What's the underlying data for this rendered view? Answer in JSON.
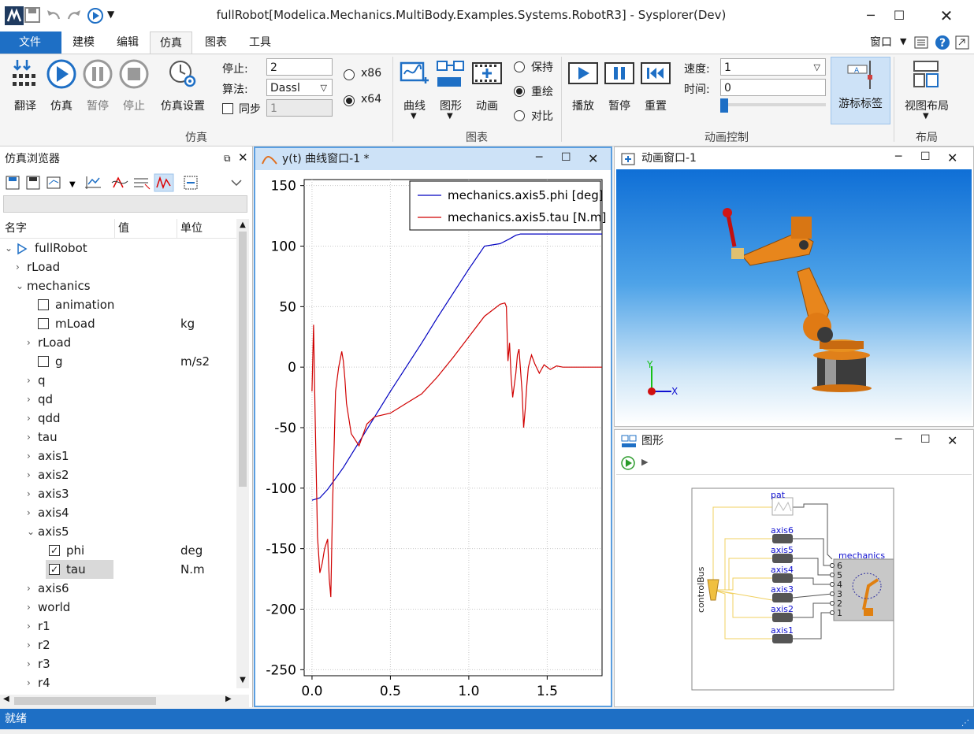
{
  "window": {
    "title": "fullRobot[Modelica.Mechanics.MultiBody.Examples.Systems.RobotR3] - Sysplorer(Dev)"
  },
  "menu": {
    "file": "文件",
    "items": [
      "建模",
      "编辑",
      "仿真",
      "图表",
      "工具"
    ],
    "window_menu": "窗口"
  },
  "ribbon": {
    "sim_group": {
      "label": "仿真",
      "translate": "翻译",
      "simulate": "仿真",
      "pause": "暂停",
      "stop": "停止",
      "settings": "仿真设置"
    },
    "stop_label": "停止:",
    "stop_value": "2",
    "algo_label": "算法:",
    "algo_value": "Dassl",
    "sync_label": "同步",
    "sync_value": "1",
    "arch": {
      "x86": "x86",
      "x64": "x64"
    },
    "chart_group": {
      "label": "图表",
      "curve": "曲线",
      "graph": "图形",
      "animation": "动画"
    },
    "plot_mode": {
      "keep": "保持",
      "redraw": "重绘",
      "compare": "对比"
    },
    "anim_group": {
      "label": "动画控制",
      "play": "播放",
      "pause": "暂停",
      "reset": "重置",
      "speed_label": "速度:",
      "speed_value": "1",
      "time_label": "时间:",
      "time_value": "0",
      "cursor_label": "游标标签"
    },
    "layout_group": {
      "label": "布局",
      "view_layout": "视图布局"
    }
  },
  "browser": {
    "title": "仿真浏览器",
    "columns": {
      "name": "名字",
      "value": "值",
      "unit": "单位"
    },
    "rows": [
      {
        "label": "fullRobot",
        "unit": ""
      },
      {
        "label": "rLoad",
        "unit": ""
      },
      {
        "label": "mechanics",
        "unit": ""
      },
      {
        "label": "animation",
        "unit": ""
      },
      {
        "label": "mLoad",
        "unit": "kg"
      },
      {
        "label": "rLoad",
        "unit": ""
      },
      {
        "label": "g",
        "unit": "m/s2"
      },
      {
        "label": "q",
        "unit": ""
      },
      {
        "label": "qd",
        "unit": ""
      },
      {
        "label": "qdd",
        "unit": ""
      },
      {
        "label": "tau",
        "unit": ""
      },
      {
        "label": "axis1",
        "unit": ""
      },
      {
        "label": "axis2",
        "unit": ""
      },
      {
        "label": "axis3",
        "unit": ""
      },
      {
        "label": "axis4",
        "unit": ""
      },
      {
        "label": "axis5",
        "unit": ""
      },
      {
        "label": "phi",
        "unit": "deg"
      },
      {
        "label": "tau",
        "unit": "N.m"
      },
      {
        "label": "axis6",
        "unit": ""
      },
      {
        "label": "world",
        "unit": ""
      },
      {
        "label": "r1",
        "unit": ""
      },
      {
        "label": "r2",
        "unit": ""
      },
      {
        "label": "r3",
        "unit": ""
      },
      {
        "label": "r4",
        "unit": ""
      }
    ]
  },
  "plot": {
    "title": "y(t) 曲线窗口-1 *"
  },
  "anim": {
    "title": "动画窗口-1",
    "axis_x": "X",
    "axis_y": "Y"
  },
  "diagram": {
    "title": "图形",
    "labels": {
      "pat": "pat",
      "axis6": "axis6",
      "axis5": "axis5",
      "axis4": "axis4",
      "axis3": "axis3",
      "axis2": "axis2",
      "axis1": "axis1",
      "mechanics": "mechanics",
      "controlBus": "controlBus"
    },
    "ports": [
      "6",
      "5",
      "4",
      "3",
      "2",
      "1"
    ]
  },
  "status": {
    "text": "就绪"
  },
  "chart_data": {
    "type": "line",
    "x_ticks": [
      "0.0",
      "0.5",
      "1.0",
      "1.5"
    ],
    "y_ticks": [
      "150",
      "100",
      "50",
      "0",
      "-50",
      "-100",
      "-150",
      "-200",
      "-250"
    ],
    "xlim": [
      -0.05,
      1.85
    ],
    "ylim": [
      -255,
      155
    ],
    "grid": true,
    "legend": "top-right",
    "series": [
      {
        "name": "mechanics.axis5.phi [deg]",
        "color": "#0000c0",
        "x": [
          0,
          0.05,
          0.1,
          0.15,
          0.2,
          0.3,
          0.4,
          0.5,
          0.6,
          0.7,
          0.8,
          0.9,
          1.0,
          1.1,
          1.2,
          1.26,
          1.3,
          1.33,
          1.36,
          1.5,
          1.7,
          1.85
        ],
        "y": [
          -110,
          -108,
          -101,
          -92,
          -83,
          -62,
          -41,
          -20,
          0,
          20,
          41,
          61,
          81,
          100,
          102,
          106,
          109,
          110,
          110,
          110,
          110,
          110
        ]
      },
      {
        "name": "mechanics.axis5.tau [N.m]",
        "color": "#d00000",
        "x": [
          0,
          0.01,
          0.02,
          0.035,
          0.05,
          0.065,
          0.08,
          0.1,
          0.11,
          0.12,
          0.13,
          0.15,
          0.17,
          0.19,
          0.2,
          0.21,
          0.22,
          0.25,
          0.3,
          0.35,
          0.4,
          0.5,
          0.6,
          0.7,
          0.8,
          0.9,
          1.0,
          1.1,
          1.2,
          1.23,
          1.24,
          1.25,
          1.26,
          1.27,
          1.28,
          1.3,
          1.31,
          1.32,
          1.34,
          1.35,
          1.36,
          1.37,
          1.38,
          1.4,
          1.42,
          1.45,
          1.48,
          1.52,
          1.56,
          1.6,
          1.7,
          1.85
        ],
        "y": [
          -20,
          35,
          -40,
          -140,
          -170,
          -162,
          -150,
          -142,
          -175,
          -190,
          -120,
          -20,
          0,
          13,
          5,
          -10,
          -30,
          -55,
          -65,
          -47,
          -41,
          -38,
          -30,
          -22,
          -8,
          8,
          25,
          42,
          52,
          53,
          50,
          5,
          20,
          -8,
          -25,
          -5,
          10,
          15,
          -20,
          -50,
          -35,
          -15,
          0,
          10,
          3,
          -5,
          2,
          -2,
          1,
          0,
          0,
          0
        ]
      }
    ]
  }
}
